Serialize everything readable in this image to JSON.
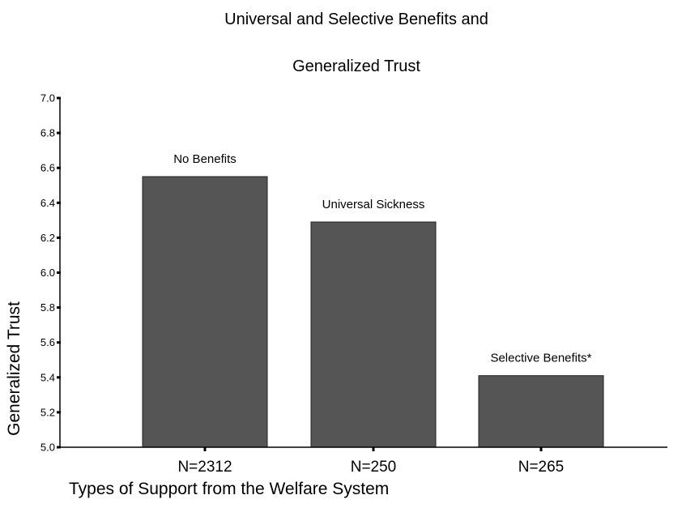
{
  "chart_data": {
    "type": "bar",
    "title_lines": [
      "Universal and Selective Benefits and",
      "Generalized Trust"
    ],
    "xlabel": "Types of Support from the Welfare System",
    "ylabel": "Generalized Trust",
    "ylim": [
      5.0,
      7.0
    ],
    "yticks": [
      "5.0",
      "5.2",
      "5.4",
      "5.6",
      "5.8",
      "6.0",
      "6.2",
      "6.4",
      "6.6",
      "6.8",
      "7.0"
    ],
    "categories": [
      "No Benefits",
      "Universal Sickness",
      "Selective Benefits*"
    ],
    "category_n": [
      "N=2312",
      "N=250",
      "N=265"
    ],
    "values": [
      6.55,
      6.29,
      5.41
    ],
    "bar_color": "#555555",
    "grid": false,
    "legend": "none"
  }
}
